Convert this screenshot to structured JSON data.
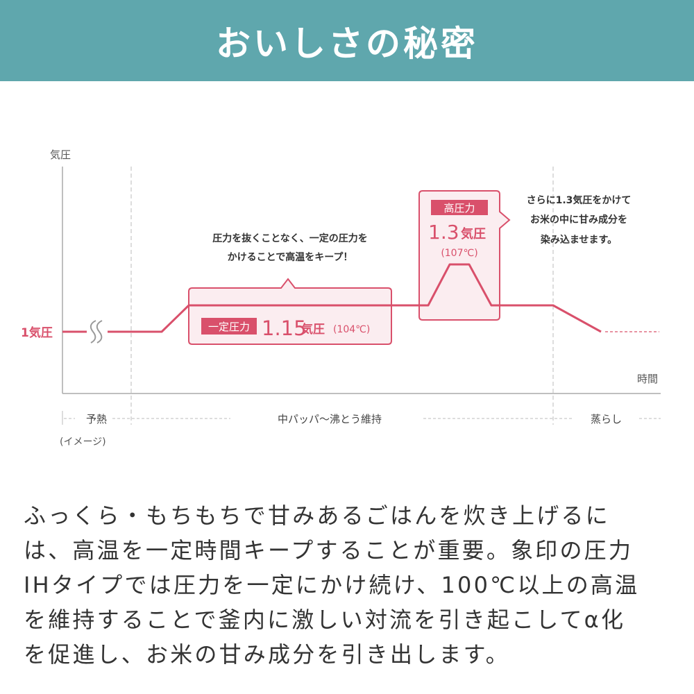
{
  "header": {
    "title": "おいしさの秘密"
  },
  "diagram": {
    "y_axis_label": "気圧",
    "x_axis_label": "時間",
    "baseline_label": "1気圧",
    "note": "(イメージ)",
    "phases": [
      "予熱",
      "中パッパ〜沸とう維持",
      "蒸らし"
    ],
    "constant_pressure": {
      "caption_lines": [
        "圧力を抜くことなく、一定の圧力を",
        "かけることで高温をキープ！"
      ],
      "badge": "一定圧力",
      "value": "1.15",
      "unit": "気圧",
      "temperature": "(104℃)"
    },
    "high_pressure": {
      "badge": "高圧力",
      "value": "1.3",
      "unit": "気圧",
      "temperature": "(107℃)",
      "caption_lines": [
        "さらに1.3気圧をかけて",
        "お米の中に甘み成分を",
        "染み込ませます。"
      ]
    },
    "colors": {
      "accent": "#d9506b",
      "box_fill": "#fbedf0",
      "header": "#5fa7ad",
      "axis": "#aaaaaa"
    }
  },
  "description_lines": [
    "ふっくら・もちもちで甘みあるごはんを炊き上げるに",
    "は、高温を一定時間キープすることが重要。象印の圧力",
    "IHタイプでは圧力を一定にかけ続け、100℃以上の高温",
    "を維持することで釜内に激しい対流を引き起こしてα化",
    "を促進し、お米の甘み成分を引き出します。"
  ]
}
